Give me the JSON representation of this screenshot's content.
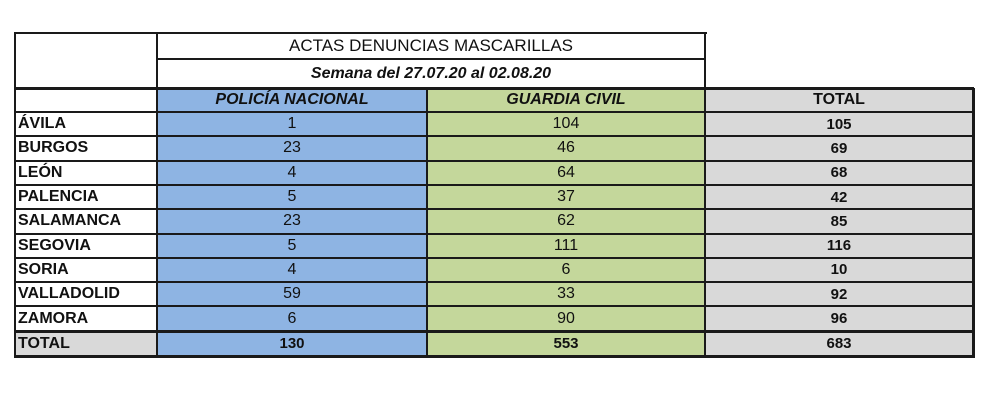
{
  "title": "ACTAS DENUNCIAS MASCARILLAS",
  "subtitle": "Semana del 27.07.20 al 02.08.20",
  "columns": {
    "policia": "POLICÍA NACIONAL",
    "guardia": "GUARDIA CIVIL",
    "total": "TOTAL"
  },
  "colors": {
    "policia": "#8eb4e3",
    "guardia": "#c4d79b",
    "total": "#d9d9d9"
  },
  "rows": [
    {
      "province": "ÁVILA",
      "policia": "1",
      "guardia": "104",
      "total": "105"
    },
    {
      "province": "BURGOS",
      "policia": "23",
      "guardia": "46",
      "total": "69"
    },
    {
      "province": "LEÓN",
      "policia": "4",
      "guardia": "64",
      "total": "68"
    },
    {
      "province": "PALENCIA",
      "policia": "5",
      "guardia": "37",
      "total": "42"
    },
    {
      "province": "SALAMANCA",
      "policia": "23",
      "guardia": "62",
      "total": "85"
    },
    {
      "province": "SEGOVIA",
      "policia": "5",
      "guardia": "111",
      "total": "116"
    },
    {
      "province": "SORIA",
      "policia": "4",
      "guardia": "6",
      "total": "10"
    },
    {
      "province": "VALLADOLID",
      "policia": "59",
      "guardia": "33",
      "total": "92"
    },
    {
      "province": "ZAMORA",
      "policia": "6",
      "guardia": "90",
      "total": "96"
    }
  ],
  "totals": {
    "label": "TOTAL",
    "policia": "130",
    "guardia": "553",
    "total": "683"
  }
}
